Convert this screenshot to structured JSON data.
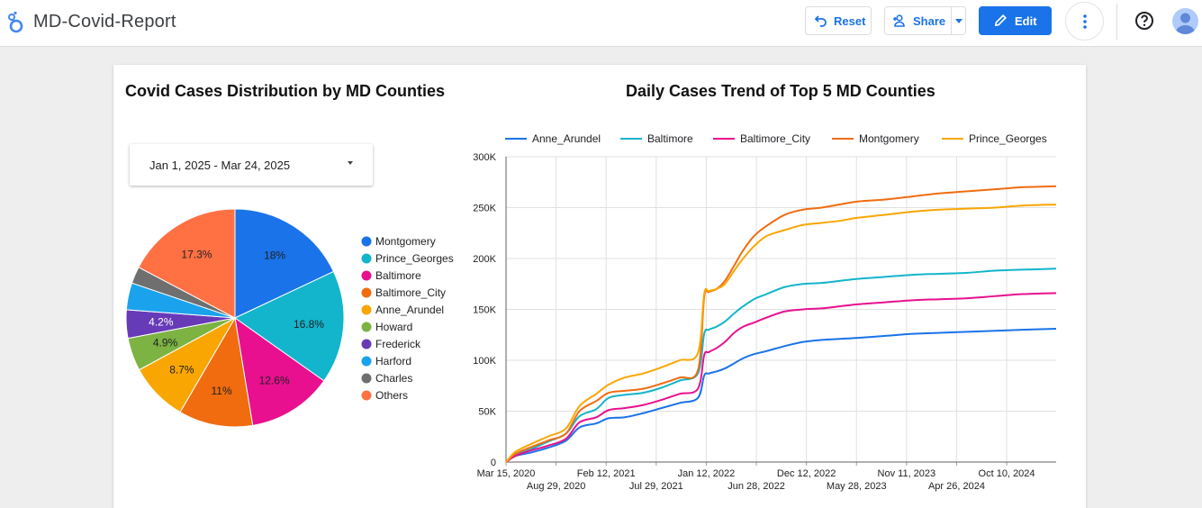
{
  "app": {
    "title": "MD-Covid-Report"
  },
  "toolbar": {
    "reset_label": "Reset",
    "share_label": "Share",
    "edit_label": "Edit"
  },
  "colors": {
    "accent": "#1a73e8"
  },
  "filters": {
    "date_range": "Jan 1, 2025 - Mar 24, 2025"
  },
  "icons": [
    "looker-studio-logo-icon",
    "undo-icon",
    "add-person-icon",
    "caret-down-icon",
    "pencil-icon",
    "more-vert-icon",
    "help-icon",
    "avatar-icon"
  ],
  "chart_data": [
    {
      "type": "pie",
      "title": "Covid Cases Distribution by MD Counties",
      "legend_position": "right",
      "slices": [
        {
          "label": "Montgomery",
          "value": 18,
          "display": "18%",
          "color": "#1a73e8"
        },
        {
          "label": "Prince_Georges",
          "value": 16.8,
          "display": "16.8%",
          "color": "#12b5cb"
        },
        {
          "label": "Baltimore",
          "value": 12.6,
          "display": "12.6%",
          "color": "#e8108f"
        },
        {
          "label": "Baltimore_City",
          "value": 11,
          "display": "11%",
          "color": "#f06c0f"
        },
        {
          "label": "Anne_Arundel",
          "value": 8.7,
          "display": "8.7%",
          "color": "#f9a602"
        },
        {
          "label": "Howard",
          "value": 4.9,
          "display": "4.9%",
          "color": "#7cb342"
        },
        {
          "label": "Frederick",
          "value": 4.2,
          "display": "4.2%",
          "color": "#673ab7"
        },
        {
          "label": "Harford",
          "value": 4.0,
          "display": "",
          "color": "#1aa3ec"
        },
        {
          "label": "Charles",
          "value": 2.5,
          "display": "",
          "color": "#6f6f6f"
        },
        {
          "label": "Others",
          "value": 17.3,
          "display": "17.3%",
          "color": "#ff7043"
        }
      ]
    },
    {
      "type": "line",
      "title": "Daily Cases Trend of Top 5 MD Counties",
      "legend_position": "top",
      "grid": true,
      "ylim": [
        0,
        300000
      ],
      "y_ticks": [
        0,
        50000,
        100000,
        150000,
        200000,
        250000,
        300000
      ],
      "y_tick_labels": [
        "0",
        "50K",
        "100K",
        "150K",
        "200K",
        "250K",
        "300K"
      ],
      "x_range": [
        "2020-03-15",
        "2025-03-24"
      ],
      "x_ticks": [
        {
          "date": "2020-03-15",
          "label": "Mar 15, 2020",
          "row": 1
        },
        {
          "date": "2020-08-29",
          "label": "Aug 29, 2020",
          "row": 2
        },
        {
          "date": "2021-02-12",
          "label": "Feb 12, 2021",
          "row": 1
        },
        {
          "date": "2021-07-29",
          "label": "Jul 29, 2021",
          "row": 2
        },
        {
          "date": "2022-01-12",
          "label": "Jan 12, 2022",
          "row": 1
        },
        {
          "date": "2022-06-28",
          "label": "Jun 28, 2022",
          "row": 2
        },
        {
          "date": "2022-12-12",
          "label": "Dec 12, 2022",
          "row": 1
        },
        {
          "date": "2023-05-28",
          "label": "May 28, 2023",
          "row": 2
        },
        {
          "date": "2023-11-11",
          "label": "Nov 11, 2023",
          "row": 1
        },
        {
          "date": "2024-04-26",
          "label": "Apr 26, 2024",
          "row": 2
        },
        {
          "date": "2024-10-10",
          "label": "Oct 10, 2024",
          "row": 1
        }
      ],
      "x": [
        "2020-03-15",
        "2020-04-15",
        "2020-06-01",
        "2020-08-01",
        "2020-10-01",
        "2020-11-15",
        "2021-01-10",
        "2021-02-20",
        "2021-04-15",
        "2021-06-15",
        "2021-08-15",
        "2021-10-15",
        "2021-12-15",
        "2022-01-05",
        "2022-01-20",
        "2022-02-15",
        "2022-03-15",
        "2022-04-15",
        "2022-05-15",
        "2022-06-20",
        "2022-08-01",
        "2022-10-01",
        "2022-12-01",
        "2023-02-01",
        "2023-04-01",
        "2023-06-01",
        "2023-09-01",
        "2023-12-01",
        "2024-03-01",
        "2024-06-01",
        "2024-09-01",
        "2024-12-01",
        "2025-03-24"
      ],
      "series": [
        {
          "name": "Anne_Arundel",
          "color": "#1a73e8",
          "values": [
            0,
            6000,
            9000,
            14000,
            21000,
            34000,
            38000,
            43000,
            44000,
            48000,
            53000,
            58000,
            63000,
            85000,
            87000,
            89000,
            92000,
            97000,
            102000,
            106000,
            109000,
            114000,
            118000,
            120000,
            121000,
            122000,
            124000,
            126000,
            127000,
            128000,
            129000,
            130000,
            131000
          ]
        },
        {
          "name": "Baltimore",
          "color": "#12b5cb",
          "values": [
            0,
            7000,
            12000,
            20000,
            28000,
            45000,
            52000,
            63000,
            66000,
            68000,
            73000,
            80000,
            87000,
            126000,
            130000,
            133000,
            138000,
            146000,
            153000,
            160000,
            165000,
            172000,
            175000,
            176000,
            178000,
            180000,
            182000,
            184000,
            185000,
            186000,
            188000,
            189000,
            190000
          ]
        },
        {
          "name": "Baltimore_City",
          "color": "#e8108f",
          "values": [
            0,
            6000,
            11000,
            16000,
            23000,
            39000,
            44000,
            51000,
            53000,
            56000,
            61000,
            67000,
            72000,
            105000,
            108000,
            112000,
            118000,
            127000,
            133000,
            137000,
            142000,
            148000,
            150000,
            151000,
            153000,
            155000,
            157000,
            159000,
            160000,
            161000,
            163000,
            165000,
            166000
          ]
        },
        {
          "name": "Montgomery",
          "color": "#f06c0f",
          "values": [
            0,
            8000,
            14000,
            21000,
            28000,
            50000,
            60000,
            68000,
            70000,
            72000,
            77000,
            83000,
            90000,
            162000,
            167000,
            170000,
            178000,
            193000,
            208000,
            222000,
            232000,
            243000,
            248000,
            250000,
            253000,
            256000,
            258000,
            261000,
            264000,
            266000,
            268000,
            270000,
            271000
          ]
        },
        {
          "name": "Prince_Georges",
          "color": "#f9a602",
          "values": [
            0,
            10000,
            17000,
            25000,
            33000,
            55000,
            67000,
            76000,
            83000,
            87000,
            93000,
            100000,
            107000,
            165000,
            168000,
            170000,
            175000,
            188000,
            200000,
            212000,
            222000,
            228000,
            233000,
            235000,
            237000,
            240000,
            243000,
            246000,
            248000,
            249000,
            250000,
            252000,
            253000
          ]
        }
      ]
    }
  ]
}
